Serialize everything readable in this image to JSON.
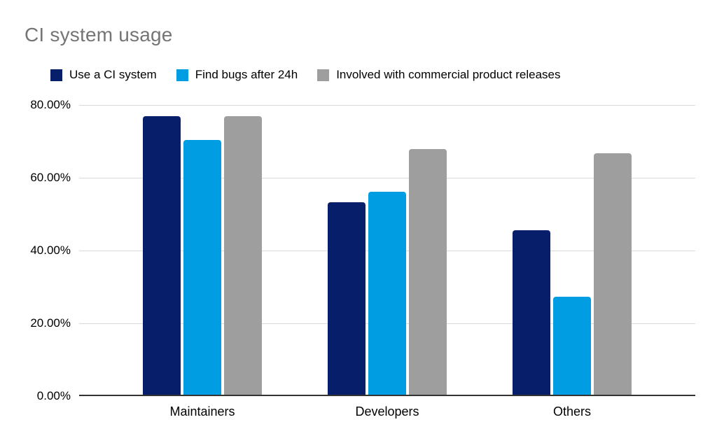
{
  "chart_data": {
    "type": "bar",
    "title": "CI system usage",
    "categories": [
      "Maintainers",
      "Developers",
      "Others"
    ],
    "series": [
      {
        "name": "Use a CI system",
        "color": "#071f6b",
        "values": [
          76.5,
          52.8,
          45.2
        ]
      },
      {
        "name": "Find bugs after 24h",
        "color": "#019de2",
        "values": [
          70.0,
          55.7,
          27.0
        ]
      },
      {
        "name": "Involved with commercial product releases",
        "color": "#9e9e9e",
        "values": [
          76.5,
          67.5,
          66.4
        ]
      }
    ],
    "ylim": [
      0,
      80
    ],
    "yticks": [
      0,
      20,
      40,
      60,
      80
    ],
    "ytick_labels": [
      "0.00%",
      "20.00%",
      "40.00%",
      "60.00%",
      "80.00%"
    ],
    "xlabel": "",
    "ylabel": "",
    "grid": true,
    "legend_position": "top",
    "style": {
      "title_color": "#757575",
      "gridline_color": "#d9d9d9",
      "axis_line_color": "#333333",
      "tick_label_color": "#000000",
      "background": "#ffffff"
    }
  }
}
